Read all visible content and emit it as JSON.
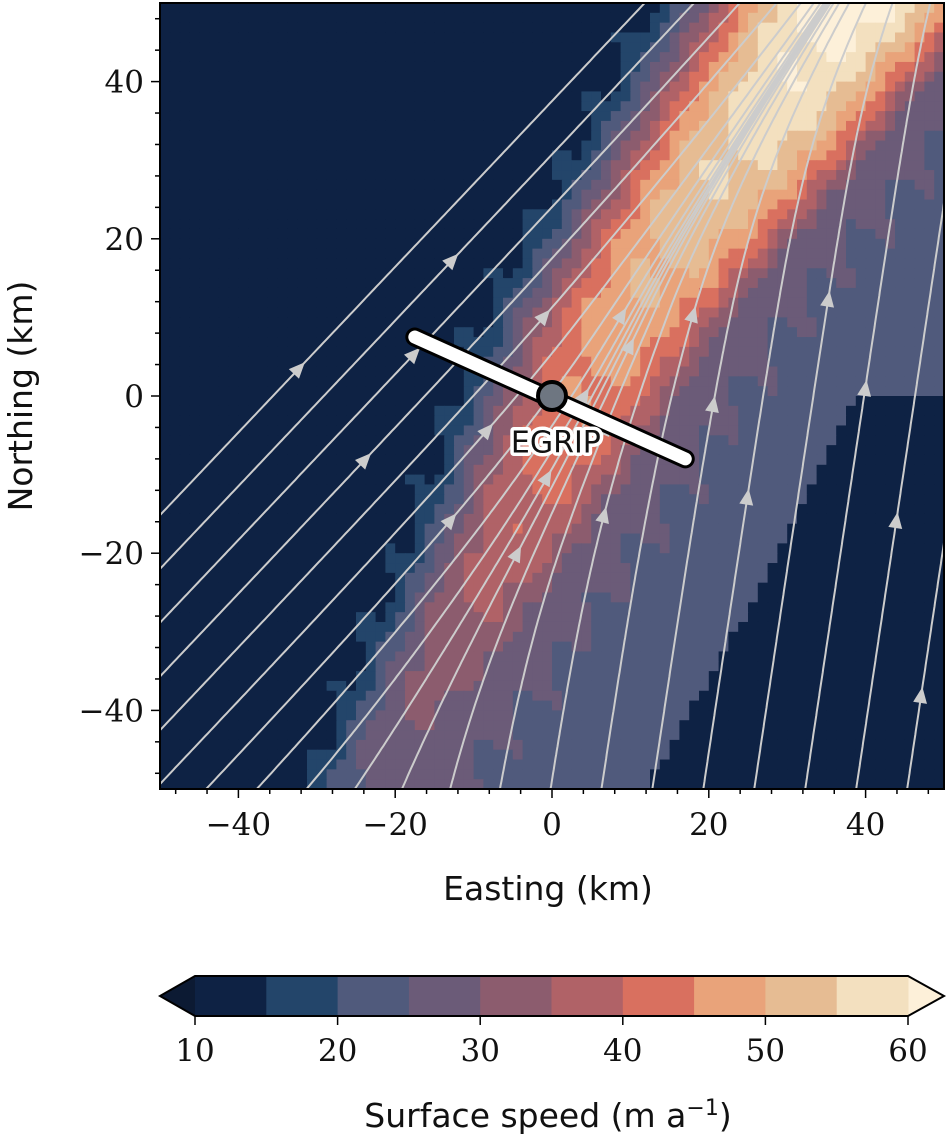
{
  "chart_data": {
    "type": "heatmap",
    "title": "",
    "xlabel": "Easting (km)",
    "ylabel": "Northing (km)",
    "xlim": [
      -50,
      50
    ],
    "ylim": [
      -50,
      50
    ],
    "xticks": [
      -40,
      -20,
      0,
      20,
      40
    ],
    "yticks": [
      40,
      20,
      0,
      -20,
      -40
    ],
    "xtick_labels": [
      "−40",
      "−20",
      "0",
      "20",
      "40"
    ],
    "ytick_labels": [
      "40",
      "20",
      "0",
      "−20",
      "−40"
    ],
    "grid": false,
    "field": {
      "name": "Surface speed",
      "description": "Fast ice stream band running SW–NE through the domain",
      "stream_axis_points": [
        [
          -22,
          -50
        ],
        [
          -5,
          -20
        ],
        [
          10,
          10
        ],
        [
          38,
          50
        ]
      ],
      "background_west_speed": 12,
      "background_east_speed": 23
    },
    "streamlines": {
      "color": "#cccccc",
      "direction": "north-northeast"
    },
    "site": {
      "label": "EGRIP",
      "x": 0,
      "y": 0,
      "profile_line": [
        [
          -17.5,
          7.5
        ],
        [
          17,
          -8
        ]
      ]
    },
    "colorbar": {
      "label": "Surface speed (m a⁻¹)",
      "label_main": "Surface speed (m a",
      "label_exp": "−1",
      "label_close": ")",
      "min": 10,
      "max": 60,
      "step": 5,
      "ticks": [
        10,
        20,
        30,
        40,
        50,
        60
      ],
      "tick_labels": [
        "10",
        "20",
        "30",
        "40",
        "50",
        "60"
      ],
      "extend": "both",
      "colors": [
        "#0c1a33",
        "#0e2244",
        "#23456a",
        "#505a7c",
        "#6b5b78",
        "#8c5c6e",
        "#b06267",
        "#d9705f",
        "#e9a37a",
        "#e6bc93",
        "#f3e0bf",
        "#fdf0d9"
      ]
    }
  }
}
